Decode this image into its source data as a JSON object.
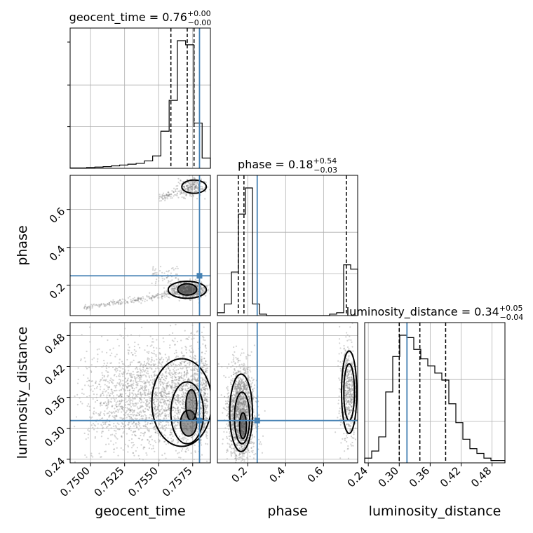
{
  "chart_data": {
    "type": "scatter",
    "variables": [
      "geocent_time",
      "phase",
      "luminosity_distance"
    ],
    "injection": {
      "geocent_time": 0.758,
      "phase": 0.25,
      "luminosity_distance": 0.315
    },
    "colors": {
      "injection": "#4682b4",
      "contour": "#000000",
      "hist": "#000000",
      "points": "#808080",
      "grid": "#b0b0b0"
    },
    "ranges": {
      "geocent_time": [
        0.7485,
        0.7588
      ],
      "phase": [
        0.04,
        0.78
      ],
      "luminosity_distance": [
        0.233,
        0.505
      ]
    },
    "ticks": {
      "geocent_time": [
        "0.7500",
        "0.7525",
        "0.7550",
        "0.7575"
      ],
      "phase": [
        "0.2",
        "0.4",
        "0.6"
      ],
      "luminosity_distance": [
        "0.24",
        "0.30",
        "0.36",
        "0.42",
        "0.48"
      ]
    },
    "tick_values": {
      "geocent_time": [
        0.75,
        0.7525,
        0.755,
        0.7575
      ],
      "phase": [
        0.2,
        0.4,
        0.6
      ],
      "luminosity_distance": [
        0.24,
        0.3,
        0.36,
        0.42,
        0.48
      ]
    },
    "axis_labels": {
      "x": [
        "geocent_time",
        "phase",
        "luminosity_distance"
      ],
      "y": [
        "phase",
        "luminosity_distance"
      ]
    },
    "titles": [
      {
        "label": "geocent_time = 0.76",
        "sup": "+0.00",
        "sub": "−0.00",
        "median": 0.7571,
        "q16": 0.7559,
        "q84": 0.7576
      },
      {
        "label": "phase = 0.18",
        "sup": "+0.54",
        "sub": "−0.03",
        "median": 0.18,
        "q16": 0.15,
        "q84": 0.72
      },
      {
        "label": "luminosity_distance = 0.34",
        "sup": "+0.05",
        "sub": "−0.04",
        "median": 0.34,
        "q16": 0.3,
        "q84": 0.39
      }
    ],
    "histograms": {
      "geocent_time": [
        1,
        1,
        2,
        3,
        4,
        6,
        8,
        10,
        12,
        18,
        30,
        90,
        165,
        310,
        300,
        110,
        25
      ],
      "phase": [
        2,
        8,
        30,
        70,
        88,
        8,
        1,
        0,
        0,
        0,
        0,
        0,
        0,
        0,
        0,
        0,
        1,
        2,
        35,
        32
      ],
      "luminosity_distance": [
        2,
        5,
        11,
        30,
        45,
        54,
        53,
        48,
        44,
        41,
        38,
        35,
        25,
        17,
        10,
        6,
        4,
        2,
        1,
        1
      ]
    },
    "grid": true
  }
}
